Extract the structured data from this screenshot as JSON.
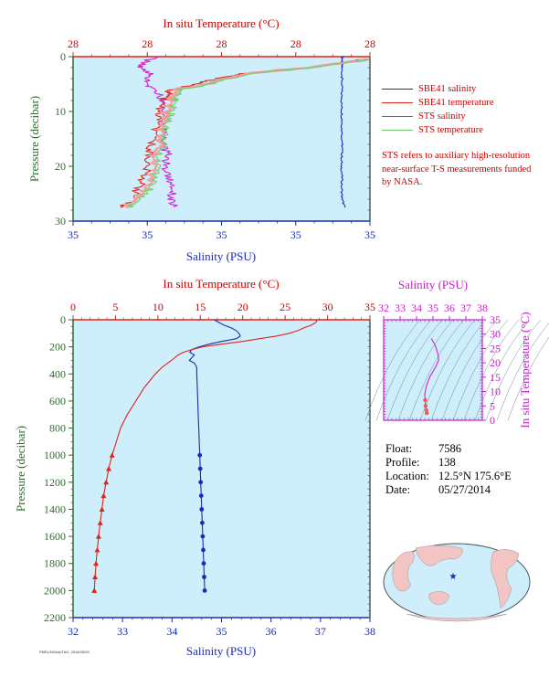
{
  "colors": {
    "plot_bg": "#cdeefa",
    "temp": "#e0241b",
    "salinity": "#1a2bb5",
    "sts_salinity": "#d11fd1",
    "sts_temp": "#6cd16c",
    "sts_temp_pink": "#f2a0a0",
    "axis_red": "#cc0000",
    "axis_magenta": "#c71fc7",
    "axis_green": "#2f6b2f",
    "axis_blue": "#1a2bb5"
  },
  "top_panel": {
    "top_axis_title": "In situ Temperature (°C)",
    "bottom_axis_title": "Salinity (PSU)",
    "left_axis_title": "Pressure (decibar)",
    "top_ticks": [
      "28",
      "28",
      "28",
      "28",
      "28"
    ],
    "bottom_ticks": [
      "35",
      "35",
      "35",
      "35",
      "35"
    ],
    "left_ticks": [
      "0",
      "10",
      "20",
      "30"
    ]
  },
  "legend": [
    {
      "label": "SBE41 salinity",
      "color": "#1a2bb5"
    },
    {
      "label": "SBE41 temperature",
      "color": "#e0241b"
    },
    {
      "label": "STS salinity",
      "color": "#d11fd1"
    },
    {
      "label": "STS temperature",
      "color": "#6cd16c"
    }
  ],
  "note": "STS refers to auxiliary high-resolution near-surface T-S measurements funded by NASA.",
  "bottom_panel": {
    "top_axis_title": "In situ Temperature (°C)",
    "bottom_axis_title": "Salinity (PSU)",
    "left_axis_title": "Pressure (decibar)",
    "top_ticks": [
      "0",
      "5",
      "10",
      "15",
      "20",
      "25",
      "30",
      "35"
    ],
    "bottom_ticks": [
      "32",
      "33",
      "34",
      "35",
      "36",
      "37",
      "38"
    ],
    "left_ticks": [
      "0",
      "200",
      "400",
      "600",
      "800",
      "1000",
      "1200",
      "1400",
      "1600",
      "1800",
      "2000",
      "2200"
    ]
  },
  "ts_panel": {
    "top_axis_title": "Salinity (PSU)",
    "right_axis_title": "In situ Temperature (°C)",
    "top_ticks": [
      "32",
      "33",
      "34",
      "35",
      "36",
      "37",
      "38"
    ],
    "right_ticks": [
      "0",
      "5",
      "10",
      "15",
      "20",
      "25",
      "30",
      "35"
    ]
  },
  "info": {
    "float_label": "Float:",
    "float_value": "7586",
    "profile_label": "Profile:",
    "profile_value": "138",
    "location_label": "Location:",
    "location_value": "12.5°N  175.6°E",
    "date_label": "Date:",
    "date_value": "05/27/2014"
  },
  "stamp": "PMEL/NOAA/TAO, 2014/05/29",
  "chart_data": [
    {
      "type": "line",
      "title": "",
      "xlabel": "Salinity (PSU)",
      "x2label": "In situ Temperature (°C)",
      "ylabel": "Pressure (decibar)",
      "ylim": [
        30,
        0
      ],
      "series": [
        {
          "name": "SBE41 salinity",
          "axis": "bottom_frac",
          "y": [
            0,
            1,
            2,
            4,
            6,
            8,
            10,
            12,
            14,
            16,
            18,
            20,
            22,
            24,
            26,
            27.5
          ],
          "x": [
            0.907,
            0.906,
            0.905,
            0.906,
            0.905,
            0.904,
            0.905,
            0.906,
            0.905,
            0.907,
            0.905,
            0.904,
            0.906,
            0.905,
            0.906,
            0.915
          ]
        },
        {
          "name": "SBE41 temperature",
          "axis": "top_frac",
          "y": [
            0.5,
            1,
            2,
            3,
            4,
            5,
            6,
            7,
            8,
            10,
            12,
            14,
            16,
            18,
            20,
            22,
            24,
            26,
            27.5
          ],
          "x": [
            0.98,
            0.92,
            0.78,
            0.58,
            0.48,
            0.42,
            0.33,
            0.32,
            0.3,
            0.29,
            0.285,
            0.27,
            0.265,
            0.255,
            0.25,
            0.24,
            0.22,
            0.2,
            0.16
          ]
        },
        {
          "name": "STS salinity",
          "axis": "bottom_frac",
          "y": [
            0,
            1,
            2,
            3,
            4,
            5,
            6,
            8,
            10,
            12,
            14,
            16,
            18,
            20,
            22,
            24,
            26,
            27.5
          ],
          "x": [
            0.28,
            0.24,
            0.22,
            0.26,
            0.25,
            0.24,
            0.28,
            0.3,
            0.31,
            0.3,
            0.31,
            0.3,
            0.32,
            0.31,
            0.32,
            0.34,
            0.33,
            0.34
          ]
        },
        {
          "name": "STS temperature",
          "axis": "top_frac",
          "y": [
            0.5,
            1,
            2,
            3,
            4,
            5,
            6,
            7,
            8,
            10,
            12,
            14,
            16,
            18,
            20,
            22,
            24,
            26,
            27.5
          ],
          "x": [
            1.0,
            0.94,
            0.8,
            0.62,
            0.52,
            0.46,
            0.36,
            0.35,
            0.34,
            0.33,
            0.32,
            0.31,
            0.305,
            0.29,
            0.285,
            0.28,
            0.26,
            0.23,
            0.19
          ]
        }
      ]
    },
    {
      "type": "line",
      "title": "",
      "xlabel": "Salinity (PSU)",
      "x2label": "In situ Temperature (°C)",
      "ylabel": "Pressure (decibar)",
      "xlim": [
        32,
        38
      ],
      "x2lim": [
        0,
        35
      ],
      "ylim": [
        2200,
        0
      ],
      "series": [
        {
          "name": "Salinity",
          "y": [
            0,
            20,
            40,
            60,
            80,
            100,
            120,
            140,
            160,
            180,
            200,
            220,
            240,
            260,
            280,
            300,
            320,
            350,
            400,
            500,
            600,
            700,
            800,
            900,
            1000,
            1100,
            1200,
            1300,
            1400,
            1500,
            1600,
            1700,
            1800,
            1900,
            2000
          ],
          "x": [
            34.85,
            34.95,
            35.05,
            35.2,
            35.3,
            35.35,
            35.38,
            35.3,
            35.0,
            34.75,
            34.55,
            34.4,
            34.36,
            34.45,
            34.4,
            34.35,
            34.45,
            34.5,
            34.5,
            34.51,
            34.52,
            34.53,
            34.54,
            34.55,
            34.56,
            34.57,
            34.58,
            34.59,
            34.6,
            34.61,
            34.62,
            34.63,
            34.64,
            34.65,
            34.66
          ]
        },
        {
          "name": "Temperature",
          "y": [
            0,
            20,
            40,
            60,
            80,
            100,
            120,
            140,
            160,
            180,
            200,
            220,
            240,
            260,
            280,
            300,
            350,
            400,
            500,
            600,
            700,
            800,
            900,
            1000,
            1100,
            1200,
            1300,
            1400,
            1500,
            1600,
            1700,
            1800,
            1900,
            2000
          ],
          "x": [
            28.8,
            28.6,
            28.1,
            27.2,
            26.5,
            25.5,
            24.0,
            22.0,
            20.0,
            17.5,
            15.3,
            14.0,
            13.0,
            12.4,
            12.0,
            11.6,
            10.5,
            9.7,
            8.4,
            7.4,
            6.4,
            5.6,
            5.1,
            4.6,
            4.2,
            3.9,
            3.6,
            3.4,
            3.2,
            3.0,
            2.85,
            2.7,
            2.6,
            2.5
          ]
        }
      ]
    },
    {
      "type": "line",
      "title": "",
      "xlabel": "Salinity (PSU)",
      "ylabel": "In situ Temperature (°C)",
      "xlim": [
        32,
        38
      ],
      "ylim": [
        0,
        35
      ],
      "series": [
        {
          "name": "T-S",
          "x": [
            34.9,
            35.0,
            35.1,
            35.2,
            35.3,
            35.35,
            35.2,
            35.0,
            34.8,
            34.6,
            34.5,
            34.52,
            34.55,
            34.6,
            34.62
          ],
          "y": [
            28.5,
            27.5,
            26.5,
            25,
            23,
            21,
            19,
            17,
            15,
            12,
            9,
            7,
            5,
            3.5,
            2.5
          ]
        }
      ]
    }
  ]
}
